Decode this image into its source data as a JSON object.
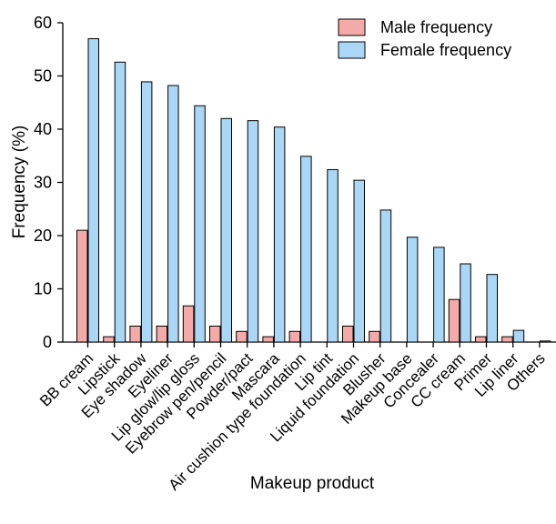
{
  "chart_data": {
    "type": "bar",
    "title": "",
    "xlabel": "Makeup product",
    "ylabel": "Frequency (%)",
    "ylim": [
      0,
      60
    ],
    "yticks": [
      "0",
      "10",
      "20",
      "30",
      "40",
      "50",
      "60"
    ],
    "legend_position": "top-right",
    "grid": false,
    "categories": [
      "BB cream",
      "Lipstick",
      "Eye shadow",
      "Eyeliner",
      "Lip glow/lip gloss",
      "Eyebrow pen/pencil",
      "Powder/pact",
      "Mascara",
      "Air cushion type foundation",
      "Lip tint",
      "Liquid foundation",
      "Blusher",
      "Makeup base",
      "Concealer",
      "CC cream",
      "Primer",
      "Lip liner",
      "Others"
    ],
    "series": [
      {
        "name": "Male frequency",
        "color": "#f4aaa6",
        "values": [
          21,
          1,
          3,
          3,
          6.8,
          3,
          2,
          1,
          2,
          0,
          3,
          2,
          0,
          0,
          8,
          1,
          1,
          0
        ]
      },
      {
        "name": "Female frequency",
        "color": "#a9d7f5",
        "values": [
          57,
          52.6,
          48.9,
          48.2,
          44.4,
          42,
          41.6,
          40.4,
          34.9,
          32.4,
          30.4,
          24.8,
          19.7,
          17.8,
          14.7,
          12.7,
          2.2,
          0.2
        ]
      }
    ]
  }
}
